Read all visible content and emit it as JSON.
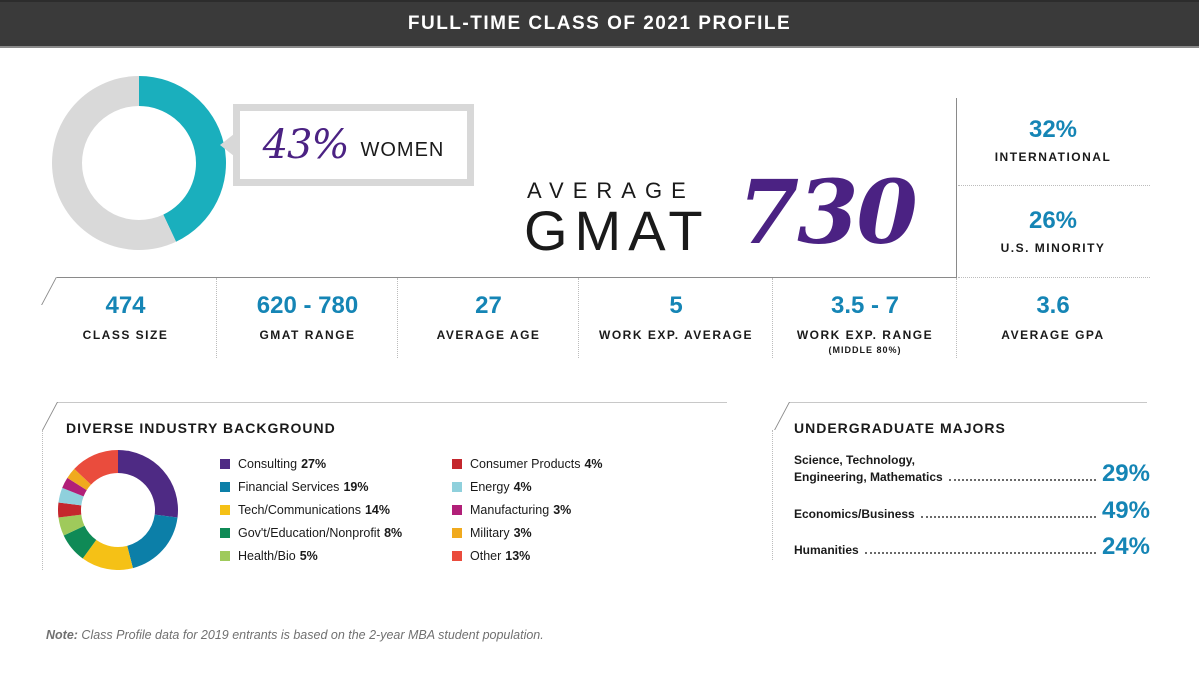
{
  "header": {
    "title": "FULL-TIME CLASS OF 2021 PROFILE"
  },
  "women": {
    "percent": "43%",
    "label": "WOMEN",
    "value": 43,
    "color": "#1aafbd",
    "rest_color": "#d9d9d9"
  },
  "gmat": {
    "average_label": "AVERAGE",
    "label": "GMAT",
    "score": "730"
  },
  "right_stats": [
    {
      "value": "32%",
      "label": "INTERNATIONAL"
    },
    {
      "value": "26%",
      "label": "U.S. MINORITY"
    }
  ],
  "stats_row": [
    {
      "value": "474",
      "label": "CLASS SIZE",
      "sub": ""
    },
    {
      "value": "620 - 780",
      "label": "GMAT RANGE",
      "sub": ""
    },
    {
      "value": "27",
      "label": "AVERAGE AGE",
      "sub": ""
    },
    {
      "value": "5",
      "label": "WORK EXP. AVERAGE",
      "sub": ""
    },
    {
      "value": "3.5 - 7",
      "label": "WORK EXP. RANGE",
      "sub": "(MIDDLE 80%)"
    },
    {
      "value": "3.6",
      "label": "AVERAGE GPA",
      "sub": ""
    }
  ],
  "industry": {
    "title": "DIVERSE INDUSTRY BACKGROUND",
    "items": [
      {
        "name": "Consulting",
        "pct": "27%",
        "color": "#4e2a84"
      },
      {
        "name": "Financial Services",
        "pct": "19%",
        "color": "#0c7fa8"
      },
      {
        "name": "Tech/Communications",
        "pct": "14%",
        "color": "#f5c116"
      },
      {
        "name": "Gov't/Education/Nonprofit",
        "pct": "8%",
        "color": "#0f8a56"
      },
      {
        "name": "Health/Bio",
        "pct": "5%",
        "color": "#9fca5b"
      },
      {
        "name": "Consumer Products",
        "pct": "4%",
        "color": "#c4272d"
      },
      {
        "name": "Energy",
        "pct": "4%",
        "color": "#8fd0dc"
      },
      {
        "name": "Manufacturing",
        "pct": "3%",
        "color": "#b11f78"
      },
      {
        "name": "Military",
        "pct": "3%",
        "color": "#f0aa1e"
      },
      {
        "name": "Other",
        "pct": "13%",
        "color": "#ea4c3d"
      }
    ]
  },
  "majors": {
    "title": "UNDERGRADUATE MAJORS",
    "items": [
      {
        "name_line1": "Science, Technology,",
        "name_line2": "Engineering, Mathematics",
        "pct": "29%"
      },
      {
        "name_line1": "",
        "name_line2": "Economics/Business",
        "pct": "49%"
      },
      {
        "name_line1": "",
        "name_line2": "Humanities",
        "pct": "24%"
      }
    ]
  },
  "note": {
    "prefix": "Note:",
    "text": " Class Profile data for 2019 entrants is based on the 2-year MBA student population."
  },
  "chart_data": [
    {
      "type": "pie",
      "title": "Women",
      "categories": [
        "Women",
        "Other"
      ],
      "values": [
        43,
        57
      ],
      "colors": [
        "#1aafbd",
        "#d9d9d9"
      ]
    },
    {
      "type": "pie",
      "title": "DIVERSE INDUSTRY BACKGROUND",
      "categories": [
        "Consulting",
        "Financial Services",
        "Tech/Communications",
        "Gov't/Education/Nonprofit",
        "Health/Bio",
        "Consumer Products",
        "Energy",
        "Manufacturing",
        "Military",
        "Other"
      ],
      "values": [
        27,
        19,
        14,
        8,
        5,
        4,
        4,
        3,
        3,
        13
      ],
      "colors": [
        "#4e2a84",
        "#0c7fa8",
        "#f5c116",
        "#0f8a56",
        "#9fca5b",
        "#c4272d",
        "#8fd0dc",
        "#b11f78",
        "#f0aa1e",
        "#ea4c3d"
      ],
      "legend_position": "right"
    },
    {
      "type": "table",
      "title": "UNDERGRADUATE MAJORS",
      "categories": [
        "Science, Technology, Engineering, Mathematics",
        "Economics/Business",
        "Humanities"
      ],
      "values": [
        29,
        49,
        24
      ]
    },
    {
      "type": "table",
      "title": "Class Stats",
      "categories": [
        "Class Size",
        "GMAT Range",
        "Average Age",
        "Work Exp. Average",
        "Work Exp. Range (Middle 80%)",
        "Average GPA",
        "Average GMAT",
        "International",
        "U.S. Minority",
        "Women"
      ],
      "values": [
        "474",
        "620 - 780",
        "27",
        "5",
        "3.5 - 7",
        "3.6",
        "730",
        "32%",
        "26%",
        "43%"
      ]
    }
  ]
}
